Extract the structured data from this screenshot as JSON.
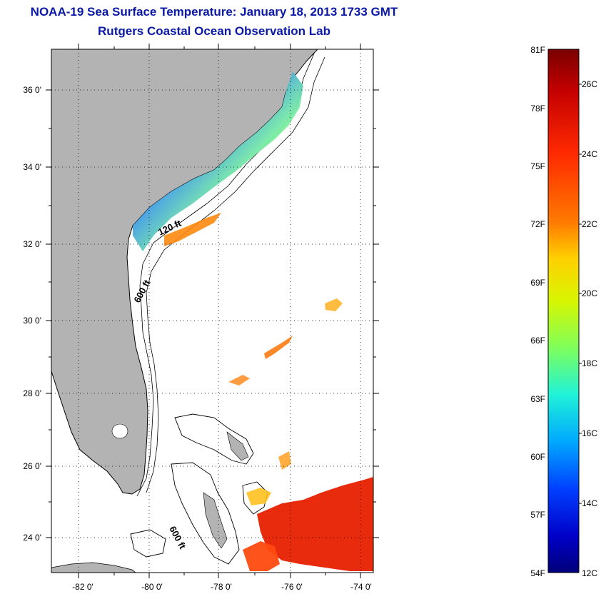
{
  "title": "NOAA-19 Sea Surface Temperature:  January 18, 2013 1733 GMT",
  "subtitle": "Rutgers Coastal Ocean Observation Lab",
  "map": {
    "lat_labels": [
      "36 0'",
      "34 0'",
      "32 0'",
      "30 0'",
      "28 0'",
      "26 0'",
      "24 0'"
    ],
    "lon_labels": [
      "-82 0'",
      "-80 0'",
      "-78 0'",
      "-76 0'",
      "-74 0'"
    ],
    "contour_labels": [
      "120 ft",
      "600 ft",
      "600 ft"
    ],
    "land_color": "#b3b3b3"
  },
  "colorbar": {
    "fahrenheit_labels": [
      "81F",
      "78F",
      "75F",
      "72F",
      "69F",
      "66F",
      "63F",
      "60F",
      "57F",
      "54F"
    ],
    "celsius_labels": [
      "26C",
      "24C",
      "22C",
      "20C",
      "18C",
      "16C",
      "14C",
      "12C"
    ],
    "colors": [
      "#7a0000",
      "#c40000",
      "#ff2a00",
      "#ff7a00",
      "#ffd000",
      "#d8f500",
      "#7fff5a",
      "#20f2d8",
      "#00a8ff",
      "#0040ff",
      "#0000c8",
      "#00007a"
    ]
  }
}
